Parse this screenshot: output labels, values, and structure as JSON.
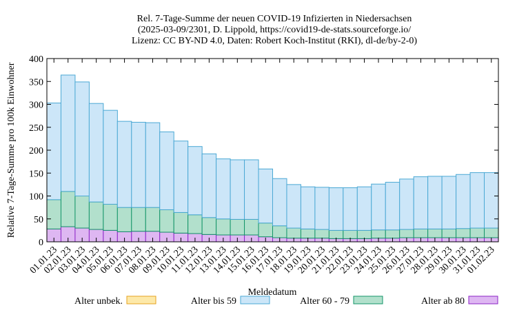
{
  "chart_data": {
    "type": "bar",
    "stacked": true,
    "title": [
      "Rel. 7-Tage-Summe der neuen COVID-19 Infizierten in Niedersachsen",
      "(2025-03-09/2301, D. Lippold, https://covid19-de-stats.sourceforge.io/",
      "Lizenz: CC BY-ND 4.0, Daten: Robert Koch-Institut (RKI), dl-de/by-2-0)"
    ],
    "xlabel": "Meldedatum",
    "ylabel": "Relative 7-Tage-Summe pro 100k Einwohner",
    "ylim": [
      0,
      400
    ],
    "yticks": [
      0,
      50,
      100,
      150,
      200,
      250,
      300,
      350,
      400
    ],
    "grid": false,
    "legend_position": "bottom",
    "categories": [
      "01.01.23",
      "02.01.23",
      "03.01.23",
      "04.01.23",
      "05.01.23",
      "06.01.23",
      "07.01.23",
      "08.01.23",
      "09.01.23",
      "10.01.23",
      "11.01.23",
      "12.01.23",
      "13.01.23",
      "14.01.23",
      "15.01.23",
      "16.01.23",
      "17.01.23",
      "18.01.23",
      "19.01.23",
      "20.01.23",
      "21.01.23",
      "22.01.23",
      "23.01.23",
      "24.01.23",
      "25.01.23",
      "26.01.23",
      "27.01.23",
      "28.01.23",
      "29.01.23",
      "30.01.23",
      "31.01.23",
      "01.02.23"
    ],
    "totals": [
      303,
      364,
      349,
      302,
      287,
      263,
      261,
      260,
      240,
      220,
      208,
      192,
      181,
      179,
      179,
      159,
      138,
      125,
      120,
      119,
      118,
      118,
      120,
      126,
      130,
      137,
      142,
      143,
      143,
      147,
      151,
      151
    ],
    "series": [
      {
        "name": "Alter unbek.",
        "fill": "#fde9a9",
        "stroke": "#e6a21e",
        "values": [
          0,
          0,
          0,
          0,
          0,
          0,
          0,
          0,
          0,
          0,
          0,
          0,
          0,
          0,
          0,
          0,
          0,
          0,
          0,
          0,
          0,
          0,
          0,
          0,
          0,
          0,
          0,
          0,
          0,
          0,
          0,
          0
        ]
      },
      {
        "name": "Alter bis 59",
        "fill": "#cce6f8",
        "stroke": "#4aa8d4",
        "values": [
          211,
          254,
          249,
          215,
          205,
          188,
          186,
          185,
          170,
          156,
          149,
          139,
          131,
          130,
          130,
          118,
          103,
          95,
          92,
          92,
          93,
          93,
          95,
          100,
          104,
          110,
          114,
          115,
          115,
          118,
          121,
          121
        ]
      },
      {
        "name": "Alter 60 - 79",
        "fill": "#b2e0cc",
        "stroke": "#119467",
        "values": [
          64,
          77,
          70,
          60,
          57,
          53,
          52,
          52,
          49,
          45,
          41,
          37,
          35,
          34,
          34,
          30,
          26,
          22,
          20,
          19,
          18,
          18,
          18,
          18,
          18,
          18,
          19,
          19,
          19,
          20,
          21,
          21
        ]
      },
      {
        "name": "Alter ab 80",
        "fill": "#deb7f2",
        "stroke": "#8b22c6",
        "values": [
          28,
          33,
          30,
          27,
          25,
          22,
          23,
          23,
          21,
          19,
          18,
          16,
          15,
          15,
          15,
          11,
          9,
          8,
          8,
          8,
          7,
          7,
          7,
          8,
          8,
          9,
          9,
          9,
          9,
          9,
          9,
          9
        ]
      }
    ]
  }
}
